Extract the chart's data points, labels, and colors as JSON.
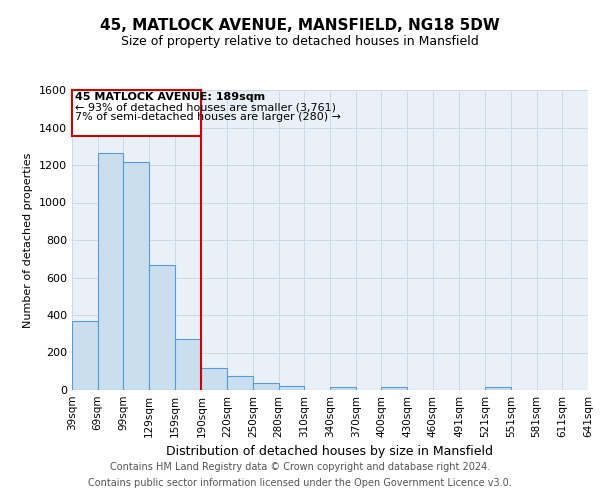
{
  "title": "45, MATLOCK AVENUE, MANSFIELD, NG18 5DW",
  "subtitle": "Size of property relative to detached houses in Mansfield",
  "xlabel": "Distribution of detached houses by size in Mansfield",
  "ylabel": "Number of detached properties",
  "footer_line1": "Contains HM Land Registry data © Crown copyright and database right 2024.",
  "footer_line2": "Contains public sector information licensed under the Open Government Licence v3.0.",
  "annotation_line1": "45 MATLOCK AVENUE: 189sqm",
  "annotation_line2": "← 93% of detached houses are smaller (3,761)",
  "annotation_line3": "7% of semi-detached houses are larger (280) →",
  "bar_edges": [
    39,
    69,
    99,
    129,
    159,
    190,
    220,
    250,
    280,
    310,
    340,
    370,
    400,
    430,
    460,
    491,
    521,
    551,
    581,
    611,
    641
  ],
  "bar_heights": [
    370,
    1265,
    1215,
    665,
    270,
    120,
    75,
    35,
    20,
    0,
    15,
    0,
    15,
    0,
    0,
    0,
    15,
    0,
    0,
    0
  ],
  "tick_labels": [
    "39sqm",
    "69sqm",
    "99sqm",
    "129sqm",
    "159sqm",
    "190sqm",
    "220sqm",
    "250sqm",
    "280sqm",
    "310sqm",
    "340sqm",
    "370sqm",
    "400sqm",
    "430sqm",
    "460sqm",
    "491sqm",
    "521sqm",
    "551sqm",
    "581sqm",
    "611sqm",
    "641sqm"
  ],
  "vline_x": 190,
  "bar_fill_color": "#c9dff0",
  "bar_edge_color": "#5b9bd5",
  "vline_color": "#cc0000",
  "annotation_box_edge_color": "#cc0000",
  "annotation_box_fill_color": "#ffffff",
  "grid_color": "#d0d8e8",
  "background_color": "#eaf0f8",
  "plot_bg_color": "#eaf0f8",
  "footer_bg_color": "#ffffff",
  "ylim": [
    0,
    1600
  ],
  "yticks": [
    0,
    200,
    400,
    600,
    800,
    1000,
    1200,
    1400,
    1600
  ],
  "title_fontsize": 11,
  "subtitle_fontsize": 9,
  "ylabel_fontsize": 8,
  "xlabel_fontsize": 9
}
